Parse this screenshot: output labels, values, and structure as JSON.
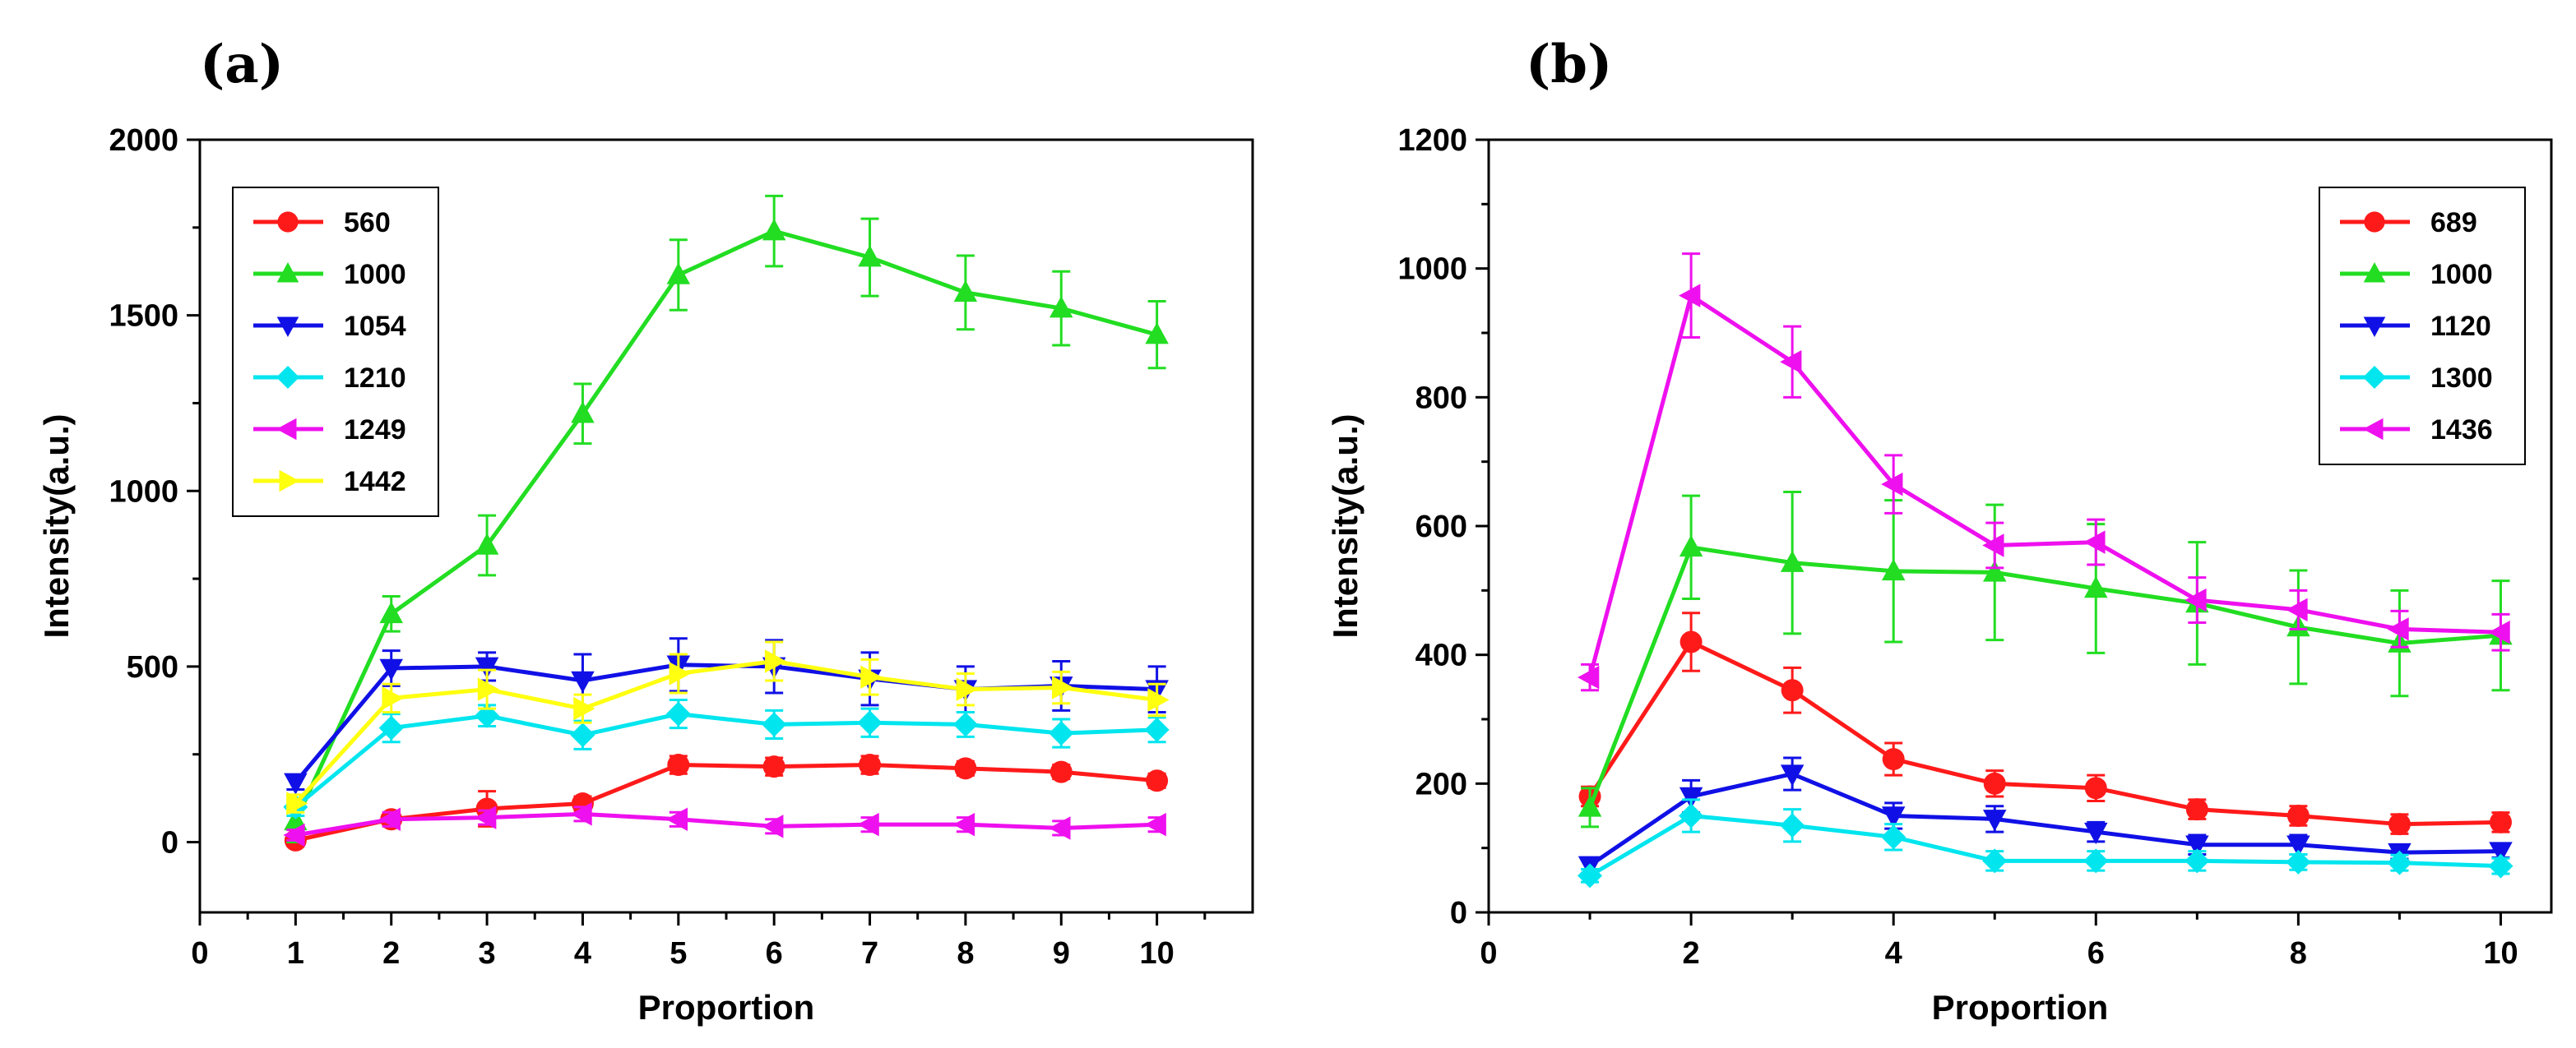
{
  "chart_data": [
    {
      "panel_label": "(a)",
      "type": "line",
      "xlabel": "Proportion",
      "ylabel": "Intensity(a.u.)",
      "xlim": [
        0,
        11
      ],
      "ylim": [
        -200,
        2000
      ],
      "xticks": [
        0,
        1,
        2,
        3,
        4,
        5,
        6,
        7,
        8,
        9,
        10
      ],
      "yticks": [
        0,
        500,
        1000,
        1500,
        2000
      ],
      "legend_position": "top-left",
      "series": [
        {
          "name": "560",
          "color": "#ff1a1a",
          "marker": "circle",
          "x": [
            1,
            2,
            3,
            4,
            5,
            6,
            7,
            8,
            9,
            10
          ],
          "values": [
            5,
            65,
            95,
            110,
            220,
            215,
            220,
            210,
            200,
            175
          ],
          "errors": [
            15,
            15,
            50,
            20,
            25,
            25,
            25,
            20,
            20,
            20
          ]
        },
        {
          "name": "1000",
          "color": "#22dd22",
          "marker": "triangle-up",
          "x": [
            1,
            2,
            3,
            4,
            5,
            6,
            7,
            8,
            9,
            10
          ],
          "values": [
            60,
            650,
            845,
            1220,
            1615,
            1740,
            1665,
            1565,
            1520,
            1445
          ],
          "errors": [
            60,
            50,
            85,
            85,
            100,
            100,
            110,
            105,
            105,
            95
          ]
        },
        {
          "name": "1054",
          "color": "#1010e6",
          "marker": "triangle-down",
          "x": [
            1,
            2,
            3,
            4,
            5,
            6,
            7,
            8,
            9,
            10
          ],
          "values": [
            170,
            495,
            500,
            460,
            505,
            500,
            465,
            435,
            445,
            435
          ],
          "errors": [
            20,
            50,
            40,
            75,
            75,
            75,
            75,
            65,
            70,
            65
          ]
        },
        {
          "name": "1210",
          "color": "#00e5ee",
          "marker": "diamond",
          "x": [
            1,
            2,
            3,
            4,
            5,
            6,
            7,
            8,
            9,
            10
          ],
          "values": [
            100,
            325,
            360,
            305,
            365,
            335,
            340,
            335,
            310,
            320
          ],
          "errors": [
            25,
            40,
            30,
            40,
            40,
            40,
            40,
            35,
            40,
            35
          ]
        },
        {
          "name": "1249",
          "color": "#ee10ee",
          "marker": "triangle-left",
          "x": [
            1,
            2,
            3,
            4,
            5,
            6,
            7,
            8,
            9,
            10
          ],
          "values": [
            20,
            65,
            70,
            80,
            65,
            45,
            50,
            50,
            40,
            50
          ],
          "errors": [
            15,
            20,
            20,
            20,
            20,
            20,
            20,
            20,
            20,
            20
          ]
        },
        {
          "name": "1442",
          "color": "#ffff10",
          "marker": "triangle-right",
          "x": [
            1,
            2,
            3,
            4,
            5,
            6,
            7,
            8,
            9,
            10
          ],
          "values": [
            110,
            410,
            435,
            380,
            480,
            515,
            470,
            435,
            440,
            405
          ],
          "errors": [
            25,
            40,
            55,
            40,
            55,
            55,
            50,
            45,
            45,
            45
          ]
        }
      ]
    },
    {
      "panel_label": "(b)",
      "type": "line",
      "xlabel": "Proportion",
      "ylabel": "Intensity(a.u.)",
      "xlim": [
        0,
        10.5
      ],
      "ylim": [
        0,
        1200
      ],
      "xticks": [
        0,
        2,
        4,
        6,
        8,
        10
      ],
      "yticks": [
        0,
        200,
        400,
        600,
        800,
        1000,
        1200
      ],
      "legend_position": "top-right",
      "series": [
        {
          "name": "689",
          "color": "#ff1a1a",
          "marker": "circle",
          "x": [
            1,
            2,
            3,
            4,
            5,
            6,
            7,
            8,
            9,
            10
          ],
          "values": [
            180,
            420,
            345,
            238,
            200,
            193,
            160,
            150,
            137,
            140
          ],
          "errors": [
            15,
            45,
            35,
            25,
            20,
            20,
            15,
            15,
            15,
            15
          ]
        },
        {
          "name": "1000",
          "color": "#22dd22",
          "marker": "triangle-up",
          "x": [
            1,
            2,
            3,
            4,
            5,
            6,
            7,
            8,
            9,
            10
          ],
          "values": [
            163,
            567,
            543,
            530,
            528,
            503,
            480,
            443,
            418,
            430
          ],
          "errors": [
            30,
            80,
            110,
            110,
            105,
            100,
            95,
            88,
            82,
            85
          ]
        },
        {
          "name": "1120",
          "color": "#1010e6",
          "marker": "triangle-down",
          "x": [
            1,
            2,
            3,
            4,
            5,
            6,
            7,
            8,
            9,
            10
          ],
          "values": [
            73,
            180,
            215,
            150,
            145,
            125,
            105,
            105,
            93,
            95
          ],
          "errors": [
            12,
            25,
            25,
            20,
            20,
            15,
            15,
            15,
            10,
            10
          ]
        },
        {
          "name": "1300",
          "color": "#00e5ee",
          "marker": "diamond",
          "x": [
            1,
            2,
            3,
            4,
            5,
            6,
            7,
            8,
            9,
            10
          ],
          "values": [
            57,
            150,
            135,
            117,
            80,
            80,
            80,
            78,
            77,
            72
          ],
          "errors": [
            10,
            25,
            25,
            20,
            15,
            15,
            15,
            12,
            12,
            12
          ]
        },
        {
          "name": "1436",
          "color": "#ee10ee",
          "marker": "triangle-left",
          "x": [
            1,
            2,
            3,
            4,
            5,
            6,
            7,
            8,
            9,
            10
          ],
          "values": [
            365,
            958,
            855,
            665,
            570,
            575,
            485,
            470,
            440,
            435
          ],
          "errors": [
            20,
            65,
            55,
            45,
            35,
            35,
            35,
            30,
            28,
            28
          ]
        }
      ]
    }
  ]
}
